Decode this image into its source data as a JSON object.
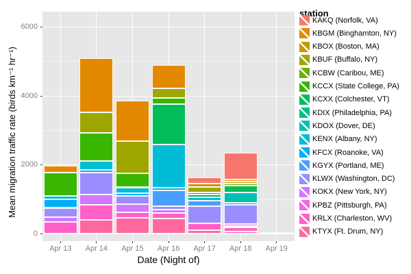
{
  "legend": {
    "title": "station"
  },
  "chart_data": {
    "type": "bar",
    "stacked": true,
    "title": "",
    "xlabel": "Date (Night of)",
    "ylabel": "Mean migration traffic rate (birds km⁻¹ hr⁻¹)",
    "ylim": [
      0,
      6440
    ],
    "y_major_ticks": [
      0,
      2000,
      4000,
      6000
    ],
    "y_minor_ticks": [
      1000,
      3000,
      5000
    ],
    "grid": "white major and minor gridlines on gray panel",
    "legend_position": "right",
    "panel_bg": "#E7E7E7",
    "categories": [
      "Apr 13",
      "Apr 14",
      "Apr 15",
      "Apr 16",
      "Apr 17",
      "Apr 18",
      "Apr 19"
    ],
    "series": [
      {
        "name": "KAKQ (Norfolk, VA)",
        "color": "#F8766D",
        "values": [
          0,
          0,
          0,
          0,
          178,
          772,
          0
        ]
      },
      {
        "name": "KBGM (Binghamton, NY)",
        "color": "#E38900",
        "values": [
          200,
          1573,
          1178,
          676,
          0,
          66,
          0
        ]
      },
      {
        "name": "KBOX (Boston, MA)",
        "color": "#C49A00",
        "values": [
          0,
          0,
          0,
          0,
          94,
          60,
          0
        ]
      },
      {
        "name": "KBUF (Buffalo, NY)",
        "color": "#9DA700",
        "values": [
          0,
          590,
          940,
          284,
          158,
          0,
          0
        ]
      },
      {
        "name": "KCBW (Caribou, ME)",
        "color": "#6FB000",
        "values": [
          0,
          0,
          0,
          0,
          0,
          48,
          0
        ]
      },
      {
        "name": "KCCX (State College, PA)",
        "color": "#39B600",
        "values": [
          670,
          821,
          401,
          180,
          62,
          0,
          0
        ]
      },
      {
        "name": "KCXX (Colchester, VT)",
        "color": "#00BC59",
        "values": [
          0,
          0,
          0,
          1171,
          83,
          199,
          0
        ]
      },
      {
        "name": "KDIX (Philadelphia, PA)",
        "color": "#00C184",
        "values": [
          0,
          0,
          0,
          0,
          0,
          0,
          0
        ]
      },
      {
        "name": "KDOX (Dover, DE)",
        "color": "#00C0B2",
        "values": [
          0,
          0,
          0,
          0,
          0,
          298,
          0
        ]
      },
      {
        "name": "KENX (Albany, NY)",
        "color": "#00BCD6",
        "values": [
          110,
          258,
          169,
          1248,
          100,
          0,
          15
        ]
      },
      {
        "name": "KFCX (Roanoke, VA)",
        "color": "#00B0F6",
        "values": [
          240,
          80,
          79,
          83,
          0,
          72,
          25
        ]
      },
      {
        "name": "KGYX (Portland, ME)",
        "color": "#4A9EFF",
        "values": [
          0,
          0,
          0,
          457,
          165,
          0,
          0
        ]
      },
      {
        "name": "KLWX (Washington, DC)",
        "color": "#9C8DFF",
        "values": [
          270,
          645,
          235,
          99,
          496,
          556,
          0
        ]
      },
      {
        "name": "KOKX (New York, NY)",
        "color": "#D277FF",
        "values": [
          145,
          298,
          238,
          105,
          0,
          54,
          0
        ]
      },
      {
        "name": "KPBZ (Pittsburgh, PA)",
        "color": "#F166E8",
        "values": [
          0,
          0,
          0,
          0,
          0,
          45,
          0
        ]
      },
      {
        "name": "KRLX (Charleston, WV)",
        "color": "#FF61C7",
        "values": [
          330,
          428,
          163,
          159,
          199,
          119,
          0
        ]
      },
      {
        "name": "KTYX (Ft. Drum, NY)",
        "color": "#FF689E",
        "values": [
          0,
          397,
          457,
          431,
          93,
          54,
          0
        ]
      }
    ],
    "totals_by_category": [
      1965,
      5090,
      3860,
      4893,
      1628,
      2343,
      40
    ]
  }
}
